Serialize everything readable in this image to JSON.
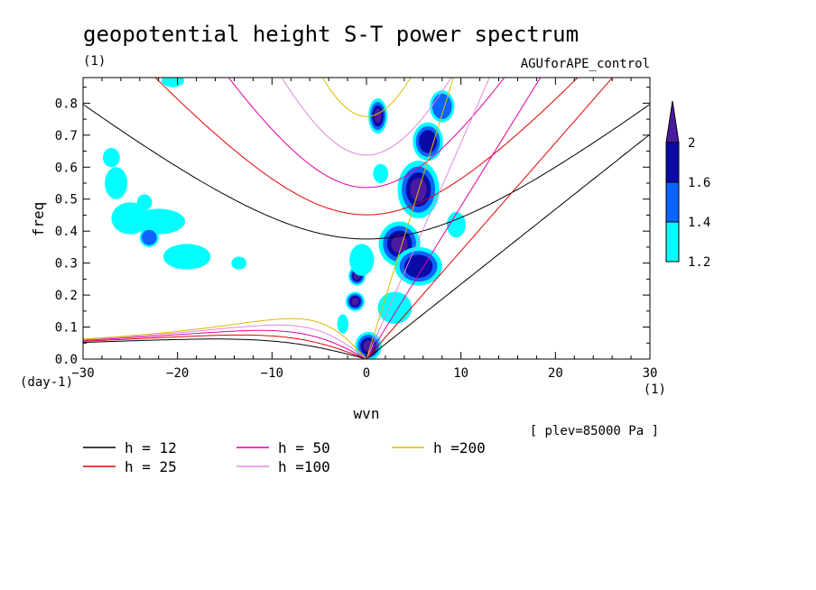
{
  "chart_data": {
    "type": "heatmap",
    "title": "geopotential height S-T power spectrum",
    "subtitle_left": "(1)",
    "subtitle_right": "AGUforAPE_control",
    "xlabel": "wvn",
    "xunit": "(1)",
    "ylabel": "freq",
    "yunit": "(day-1)",
    "xlim": [
      -30,
      30
    ],
    "ylim": [
      0,
      0.88
    ],
    "xticks": [
      -30,
      -20,
      -10,
      0,
      10,
      20,
      30
    ],
    "yticks": [
      0.0,
      0.1,
      0.2,
      0.3,
      0.4,
      0.5,
      0.6,
      0.7,
      0.8
    ],
    "ytick_labels": [
      "0.0",
      "0.1",
      "0.2",
      "0.3",
      "0.4",
      "0.5",
      "0.6",
      "0.7",
      "0.8"
    ],
    "annotation": "[ plev=85000 Pa ]",
    "colorbar": {
      "levels": [
        1.2,
        1.4,
        1.6,
        2
      ],
      "labels": [
        "1.2",
        "1.4",
        "1.6",
        "2"
      ],
      "colors": [
        "#00ffff",
        "#0a64ff",
        "#0a0aa6",
        "#4a1aa0"
      ]
    },
    "dispersion_curves": [
      {
        "label": "h = 12",
        "h": 12,
        "color": "#000000"
      },
      {
        "label": "h = 25",
        "h": 25,
        "color": "#e00000"
      },
      {
        "label": "h = 50",
        "h": 50,
        "color": "#e000a0"
      },
      {
        "label": "h =100",
        "h": 100,
        "color": "#dd88dd"
      },
      {
        "label": "h =200",
        "h": 200,
        "color": "#ddbb00"
      }
    ],
    "blobs": [
      {
        "x": 1.2,
        "y": 0.76,
        "rx": 1.0,
        "ry": 0.055,
        "level": 3
      },
      {
        "x": 0.2,
        "y": 0.04,
        "rx": 1.4,
        "ry": 0.045,
        "level": 3
      },
      {
        "x": -1.0,
        "y": 0.26,
        "rx": 0.9,
        "ry": 0.03,
        "level": 3
      },
      {
        "x": -1.2,
        "y": 0.18,
        "rx": 1.0,
        "ry": 0.03,
        "level": 3
      },
      {
        "x": 3.5,
        "y": 0.36,
        "rx": 2.2,
        "ry": 0.07,
        "level": 3
      },
      {
        "x": 5.5,
        "y": 0.53,
        "rx": 2.2,
        "ry": 0.09,
        "level": 3
      },
      {
        "x": 5.5,
        "y": 0.29,
        "rx": 2.5,
        "ry": 0.06,
        "level": 2
      },
      {
        "x": 6.5,
        "y": 0.68,
        "rx": 1.6,
        "ry": 0.06,
        "level": 2
      },
      {
        "x": 8.0,
        "y": 0.79,
        "rx": 1.3,
        "ry": 0.05,
        "level": 1
      },
      {
        "x": 3.0,
        "y": 0.16,
        "rx": 1.8,
        "ry": 0.05,
        "level": 0
      },
      {
        "x": 9.5,
        "y": 0.42,
        "rx": 1.0,
        "ry": 0.04,
        "level": 0
      },
      {
        "x": -26.5,
        "y": 0.55,
        "rx": 1.2,
        "ry": 0.05,
        "level": 0
      },
      {
        "x": -25.0,
        "y": 0.44,
        "rx": 2.0,
        "ry": 0.05,
        "level": 0
      },
      {
        "x": -22.0,
        "y": 0.43,
        "rx": 2.8,
        "ry": 0.04,
        "level": 0
      },
      {
        "x": -19.0,
        "y": 0.32,
        "rx": 2.5,
        "ry": 0.04,
        "level": 0
      },
      {
        "x": -27.0,
        "y": 0.63,
        "rx": 0.9,
        "ry": 0.03,
        "level": 0
      },
      {
        "x": -20.5,
        "y": 0.87,
        "rx": 1.2,
        "ry": 0.02,
        "level": 0
      },
      {
        "x": -23.0,
        "y": 0.38,
        "rx": 1.0,
        "ry": 0.03,
        "level": 1
      },
      {
        "x": -13.5,
        "y": 0.3,
        "rx": 0.8,
        "ry": 0.02,
        "level": 0
      },
      {
        "x": -23.5,
        "y": 0.49,
        "rx": 0.8,
        "ry": 0.025,
        "level": 0
      },
      {
        "x": -0.5,
        "y": 0.31,
        "rx": 1.3,
        "ry": 0.05,
        "level": 0
      },
      {
        "x": -2.5,
        "y": 0.11,
        "rx": 0.6,
        "ry": 0.03,
        "level": 0
      },
      {
        "x": 1.5,
        "y": 0.58,
        "rx": 0.8,
        "ry": 0.03,
        "level": 0
      }
    ]
  }
}
